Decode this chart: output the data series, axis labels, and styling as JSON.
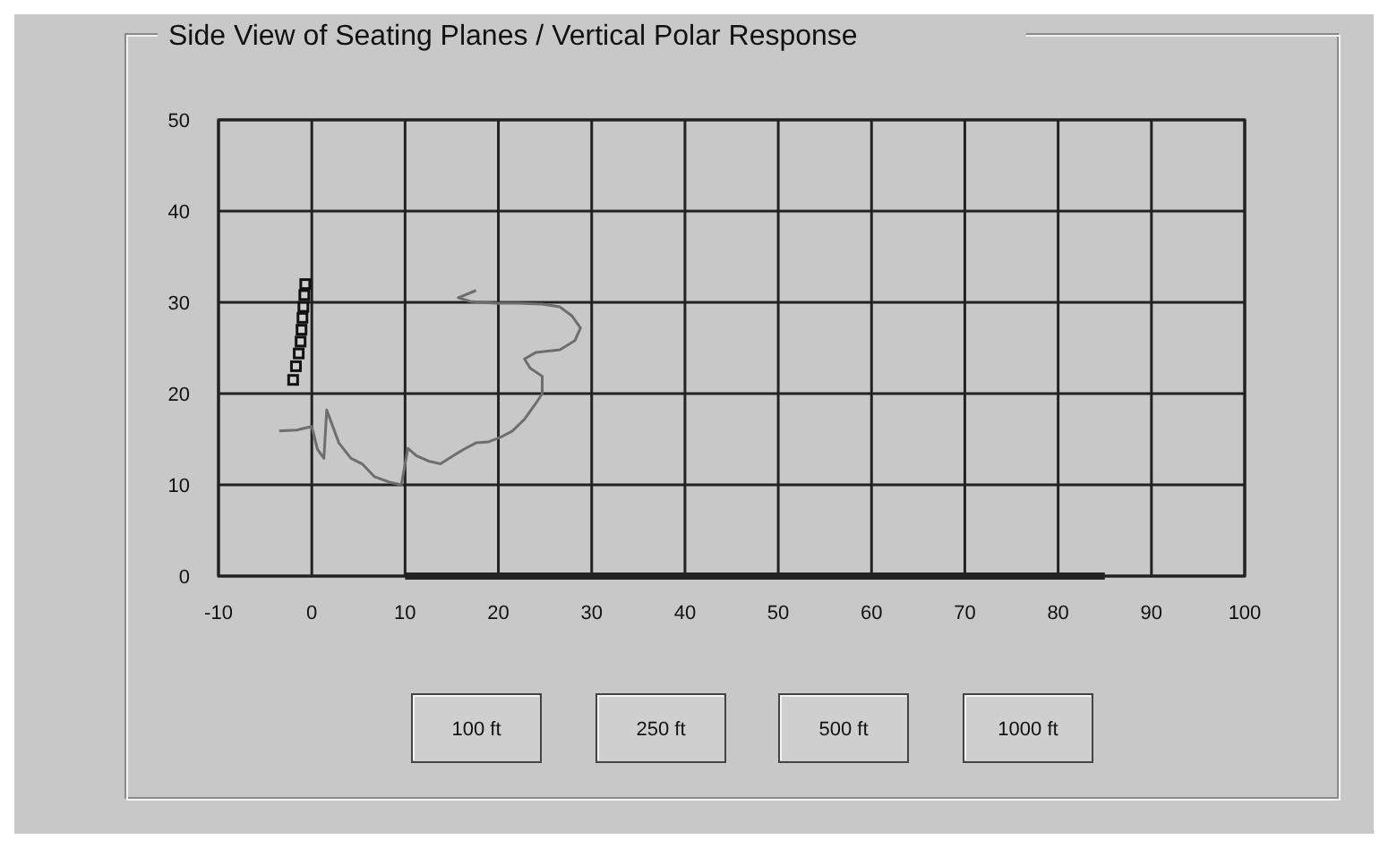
{
  "chart_data": {
    "type": "line",
    "title": "Side View of Seating Planes / Vertical Polar Response",
    "xlim": [
      -10,
      100
    ],
    "xticks": [
      -10,
      0,
      10,
      20,
      30,
      40,
      50,
      60,
      70,
      80,
      90,
      100
    ],
    "ylim": [
      0,
      50
    ],
    "yticks": [
      0,
      10,
      20,
      30,
      40,
      50
    ],
    "grid": true,
    "series": [
      {
        "color": "#6e6e6e",
        "marker": "none",
        "x": [
          -3.5,
          -1.6,
          0,
          0.6,
          1.3,
          1.6,
          2.9,
          4.2,
          5.4,
          6.7,
          8.3,
          9.6,
          10.3,
          11.2,
          12.5,
          13.8,
          14.7,
          16.3,
          17.6,
          18.9,
          20.2,
          21.5,
          22.8,
          24,
          24.7,
          24.7,
          23.4,
          22.8,
          24,
          26.6,
          28.2,
          28.8,
          27.9,
          26.6,
          24.7,
          22.1,
          19.6,
          17,
          15.7,
          17.6
        ],
        "values": [
          15.9,
          16,
          16.4,
          13.9,
          12.9,
          18.2,
          14.6,
          12.9,
          12.3,
          10.9,
          10.3,
          10,
          14,
          13.2,
          12.6,
          12.3,
          12.9,
          13.9,
          14.6,
          14.7,
          15.2,
          15.9,
          17.2,
          18.9,
          20,
          21.9,
          22.8,
          23.8,
          24.5,
          24.8,
          25.8,
          27.2,
          28.5,
          29.5,
          29.8,
          29.9,
          29.9,
          30.1,
          30.5,
          31.3
        ]
      },
      {
        "type": "scatter",
        "color": "#111111",
        "marker": "square",
        "x": [
          -0.7,
          -0.8,
          -0.9,
          -1,
          -1.1,
          -1.2,
          -1.4,
          -1.7,
          -2
        ],
        "values": [
          32,
          30.8,
          29.5,
          28.3,
          27,
          25.7,
          24.4,
          23,
          21.5
        ]
      },
      {
        "color": "#222222",
        "marker": "none",
        "x": [
          10,
          85
        ],
        "values": [
          0,
          0
        ]
      }
    ],
    "annotations": [
      "100 ft",
      "250 ft",
      "500 ft",
      "1000 ft"
    ]
  }
}
